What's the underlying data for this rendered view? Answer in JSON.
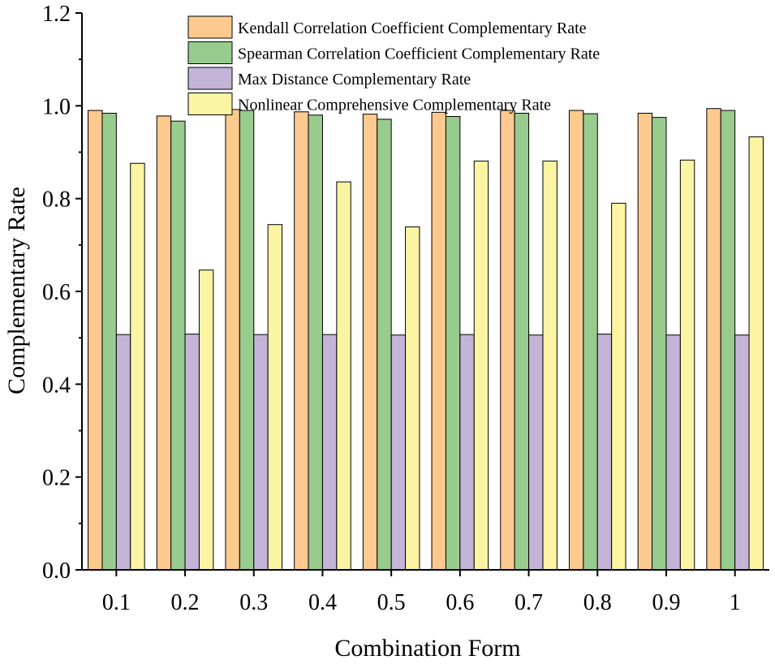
{
  "chart_data": {
    "type": "bar",
    "title": "",
    "xlabel": "Combination Form",
    "ylabel": "Complementary Rate",
    "ylim": [
      0,
      1.2
    ],
    "yticks": [
      "0.0",
      "0.2",
      "0.4",
      "0.6",
      "0.8",
      "1.0",
      "1.2"
    ],
    "categories": [
      "0.1",
      "0.2",
      "0.3",
      "0.4",
      "0.5",
      "0.6",
      "0.7",
      "0.8",
      "0.9",
      "1"
    ],
    "legend_position": "top-center",
    "grid": false,
    "series": [
      {
        "name": "Kendall Correlation Coefficient Complementary Rate",
        "color": "#FCC98F",
        "values": [
          0.99,
          0.978,
          0.992,
          0.987,
          0.982,
          0.986,
          0.99,
          0.99,
          0.984,
          0.994
        ]
      },
      {
        "name": "Spearman Correlation Coefficient Complementary Rate",
        "color": "#98CC8E",
        "values": [
          0.984,
          0.967,
          0.99,
          0.98,
          0.971,
          0.977,
          0.984,
          0.983,
          0.975,
          0.99
        ]
      },
      {
        "name": "Max Distance Complementary Rate",
        "color": "#C4B4D8",
        "values": [
          0.507,
          0.508,
          0.507,
          0.507,
          0.506,
          0.507,
          0.506,
          0.508,
          0.506,
          0.506
        ]
      },
      {
        "name": "Nonlinear Comprehensive Complementary Rate",
        "color": "#FBF4A3",
        "values": [
          0.876,
          0.646,
          0.744,
          0.836,
          0.739,
          0.881,
          0.881,
          0.79,
          0.883,
          0.933
        ]
      }
    ]
  }
}
